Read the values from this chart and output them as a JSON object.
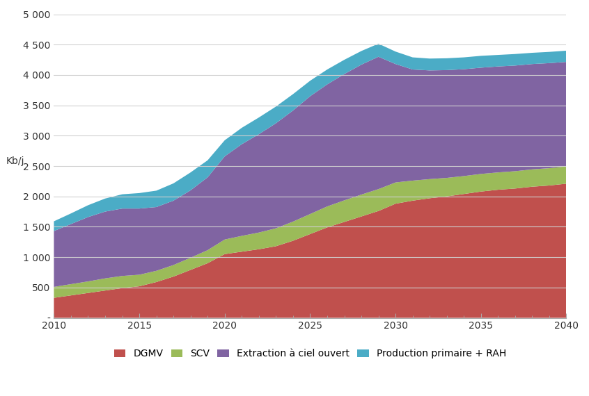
{
  "title": "",
  "xlabel": "",
  "ylabel": "Kb/j",
  "xlim": [
    2010,
    2040
  ],
  "ylim": [
    0,
    5000
  ],
  "yticks": [
    0,
    500,
    1000,
    1500,
    2000,
    2500,
    3000,
    3500,
    4000,
    4500,
    5000
  ],
  "ytick_labels": [
    "-",
    "500",
    "1 000",
    "1 500",
    "2 000",
    "2 500",
    "3 000",
    "3 500",
    "4 000",
    "4 500",
    "5 000"
  ],
  "xticks": [
    2010,
    2015,
    2020,
    2025,
    2030,
    2035,
    2040
  ],
  "years": [
    2010,
    2011,
    2012,
    2013,
    2014,
    2015,
    2016,
    2017,
    2018,
    2019,
    2020,
    2021,
    2022,
    2023,
    2024,
    2025,
    2026,
    2027,
    2028,
    2029,
    2030,
    2031,
    2032,
    2033,
    2034,
    2035,
    2036,
    2037,
    2038,
    2039,
    2040
  ],
  "series": {
    "DGMV": [
      330,
      370,
      410,
      450,
      490,
      520,
      590,
      680,
      790,
      900,
      1050,
      1090,
      1130,
      1180,
      1270,
      1380,
      1490,
      1580,
      1670,
      1760,
      1880,
      1930,
      1970,
      2000,
      2040,
      2080,
      2110,
      2130,
      2160,
      2180,
      2210
    ],
    "SCV": [
      180,
      185,
      190,
      200,
      200,
      190,
      185,
      190,
      200,
      215,
      240,
      260,
      275,
      295,
      315,
      330,
      345,
      355,
      360,
      360,
      350,
      330,
      315,
      305,
      295,
      290,
      285,
      285,
      285,
      285,
      285
    ],
    "Extraction": [
      920,
      990,
      1060,
      1100,
      1110,
      1090,
      1050,
      1060,
      1110,
      1200,
      1370,
      1510,
      1620,
      1730,
      1830,
      1940,
      2010,
      2080,
      2140,
      2180,
      1950,
      1830,
      1790,
      1775,
      1760,
      1750,
      1745,
      1740,
      1735,
      1730,
      1720
    ],
    "Production": [
      160,
      175,
      195,
      215,
      235,
      255,
      270,
      285,
      295,
      280,
      265,
      270,
      275,
      275,
      270,
      255,
      245,
      235,
      225,
      215,
      205,
      200,
      195,
      195,
      195,
      195,
      190,
      190,
      185,
      185,
      185
    ]
  },
  "colors": {
    "DGMV": "#c0504d",
    "SCV": "#9bbb59",
    "Extraction": "#8064a2",
    "Production": "#4bacc6"
  },
  "legend_labels": [
    "DGMV",
    "SCV",
    "Extraction à ciel ouvert",
    "Production primaire + RAH"
  ],
  "background_color": "#ffffff",
  "grid_color": "#d0d0d0"
}
